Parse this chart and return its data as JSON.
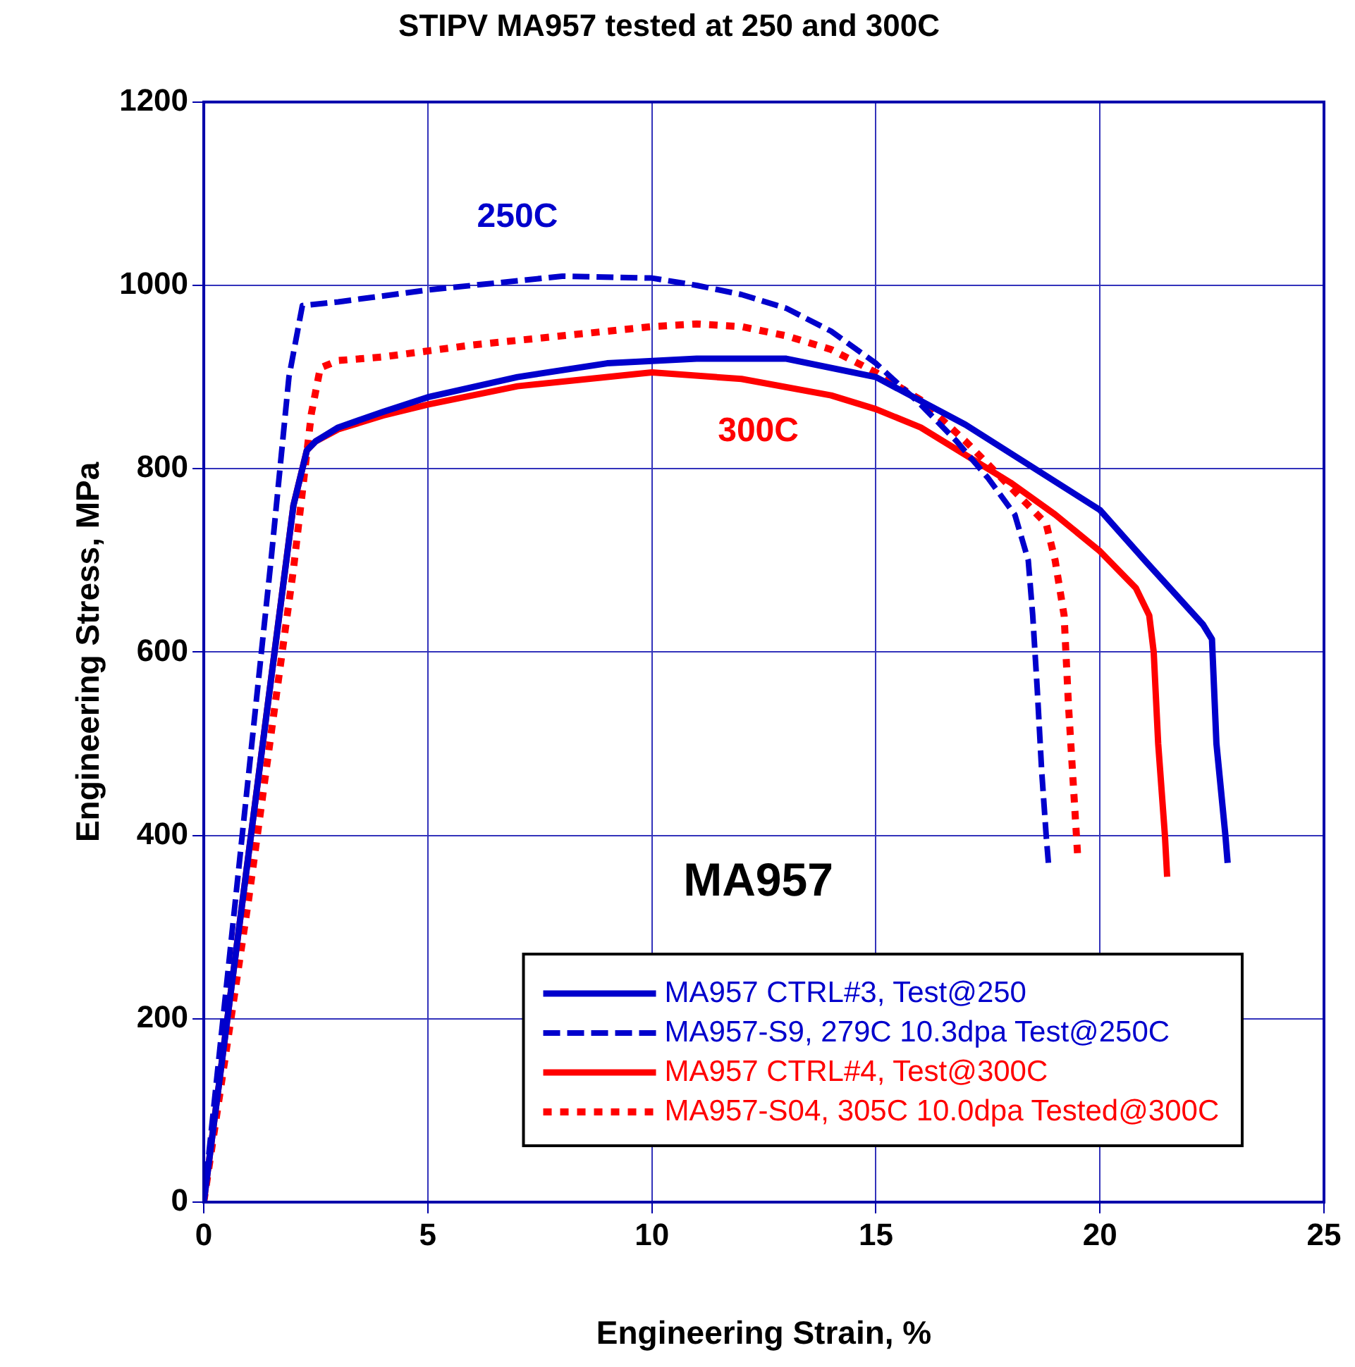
{
  "chart_data": {
    "type": "line",
    "title": "STIPV MA957 tested at 250 and 300C",
    "xlabel": "Engineering Strain, %",
    "ylabel": "Engineering Stress, MPa",
    "xlim": [
      0,
      25
    ],
    "xticks": [
      0,
      5,
      10,
      15,
      20,
      25
    ],
    "ylim": [
      0,
      1200
    ],
    "yticks": [
      0,
      200,
      400,
      600,
      800,
      1000,
      1200
    ],
    "grid": true,
    "legend": "bottom right",
    "marker": "none",
    "annotations": [
      "250C",
      "300C",
      "MA957"
    ],
    "series": [
      {
        "name": "MA957 CTRL#3, Test@250",
        "color": "#0000cc",
        "line_style": "solid",
        "x": [
          0,
          1,
          2,
          2.3,
          2.5,
          3,
          4,
          5,
          7,
          9,
          11,
          13,
          15,
          17,
          20,
          21,
          22.3,
          22.5,
          22.6,
          22.8,
          22.85
        ],
        "values": [
          0,
          380,
          760,
          820,
          830,
          845,
          862,
          878,
          900,
          915,
          920,
          920,
          900,
          848,
          755,
          700,
          630,
          614,
          500,
          400,
          370
        ]
      },
      {
        "name": "MA957-S9, 279C 10.3dpa Test@250C",
        "color": "#0000cc",
        "line_style": "dashed",
        "x": [
          0,
          1.5,
          1.9,
          2.2,
          3,
          5,
          7,
          8,
          10,
          11,
          12,
          13,
          14,
          15,
          16,
          16.8,
          17.5,
          18.1,
          18.4,
          18.5,
          18.6,
          18.7,
          18.8,
          18.85
        ],
        "values": [
          0,
          700,
          900,
          978,
          982,
          995,
          1005,
          1010,
          1008,
          1000,
          990,
          975,
          950,
          915,
          870,
          830,
          790,
          750,
          700,
          640,
          560,
          470,
          400,
          370
        ]
      },
      {
        "name": "MA957 CTRL#4, Test@300C",
        "color": "#ff0000",
        "line_style": "solid",
        "x": [
          0,
          1,
          2,
          2.3,
          2.5,
          3,
          4,
          5,
          7,
          10,
          12,
          14,
          15,
          16,
          17,
          18,
          19,
          20,
          20.8,
          21.1,
          21.2,
          21.3,
          21.45,
          21.5
        ],
        "values": [
          0,
          380,
          760,
          820,
          830,
          843,
          858,
          870,
          890,
          905,
          898,
          880,
          865,
          845,
          815,
          785,
          750,
          710,
          670,
          640,
          600,
          500,
          400,
          355
        ]
      },
      {
        "name": "MA957-S04, 305C 10.0dpa Tested@300C",
        "color": "#ff0000",
        "line_style": "dotted",
        "x": [
          0,
          1,
          2,
          2.4,
          2.6,
          3,
          4,
          6,
          8,
          10,
          11,
          12,
          13,
          14,
          15,
          16,
          17,
          18,
          18.8,
          19,
          19.2,
          19.3,
          19.4,
          19.5
        ],
        "values": [
          0,
          330,
          690,
          860,
          910,
          918,
          922,
          935,
          945,
          955,
          958,
          955,
          945,
          930,
          905,
          875,
          830,
          780,
          740,
          700,
          640,
          540,
          460,
          380
        ]
      }
    ]
  }
}
